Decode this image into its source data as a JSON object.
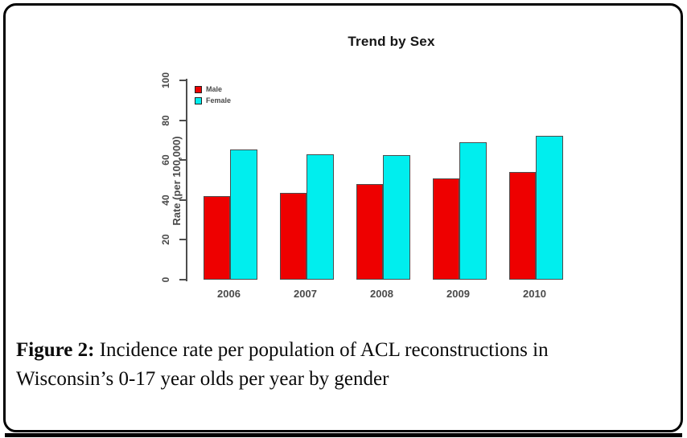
{
  "figure": {
    "caption_label": "Figure 2:",
    "caption_line1": " Incidence rate per population of ACL reconstructions in",
    "caption_line2": "Wisconsin’s 0-17 year olds per year by gender"
  },
  "chart_data": {
    "type": "bar",
    "title": "Trend by Sex",
    "categories": [
      "2006",
      "2007",
      "2008",
      "2009",
      "2010"
    ],
    "series": [
      {
        "name": "Male",
        "color": "#ee0000",
        "values": [
          42,
          43.5,
          48,
          51,
          54
        ]
      },
      {
        "name": "Female",
        "color": "#00eeee",
        "values": [
          65.5,
          63,
          62.5,
          69,
          72
        ]
      }
    ],
    "xlabel": "",
    "ylabel": "Rate (per 100,000)",
    "yticks": [
      0,
      20,
      40,
      60,
      80,
      100
    ],
    "ylim": [
      0,
      100
    ],
    "grid": false,
    "legend_position": "top-left",
    "bar_border_color": "#4d4d4d"
  }
}
